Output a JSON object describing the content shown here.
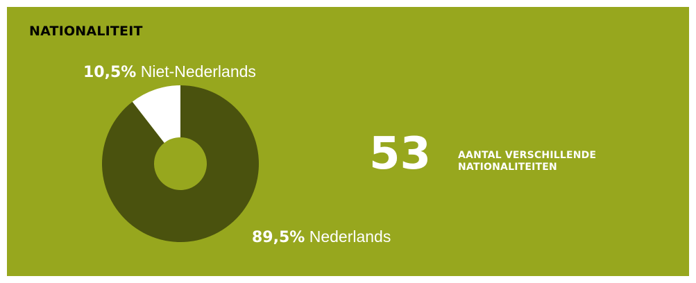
{
  "panel": {
    "title": "NATIONALITEIT",
    "background": "#97a71e"
  },
  "chart_data": {
    "type": "pie",
    "variant": "donut",
    "title": "NATIONALITEIT",
    "slices": [
      {
        "name": "Niet-Nederlands",
        "value": 10.5,
        "value_label": "10,5%",
        "color": "#ffffff"
      },
      {
        "name": "Nederlands",
        "value": 89.5,
        "value_label": "89,5%",
        "color": "#4a520e"
      }
    ]
  },
  "stat": {
    "value": "53",
    "caption_line1": "AANTAL VERSCHILLENDE",
    "caption_line2": "NATIONALITEITEN"
  }
}
